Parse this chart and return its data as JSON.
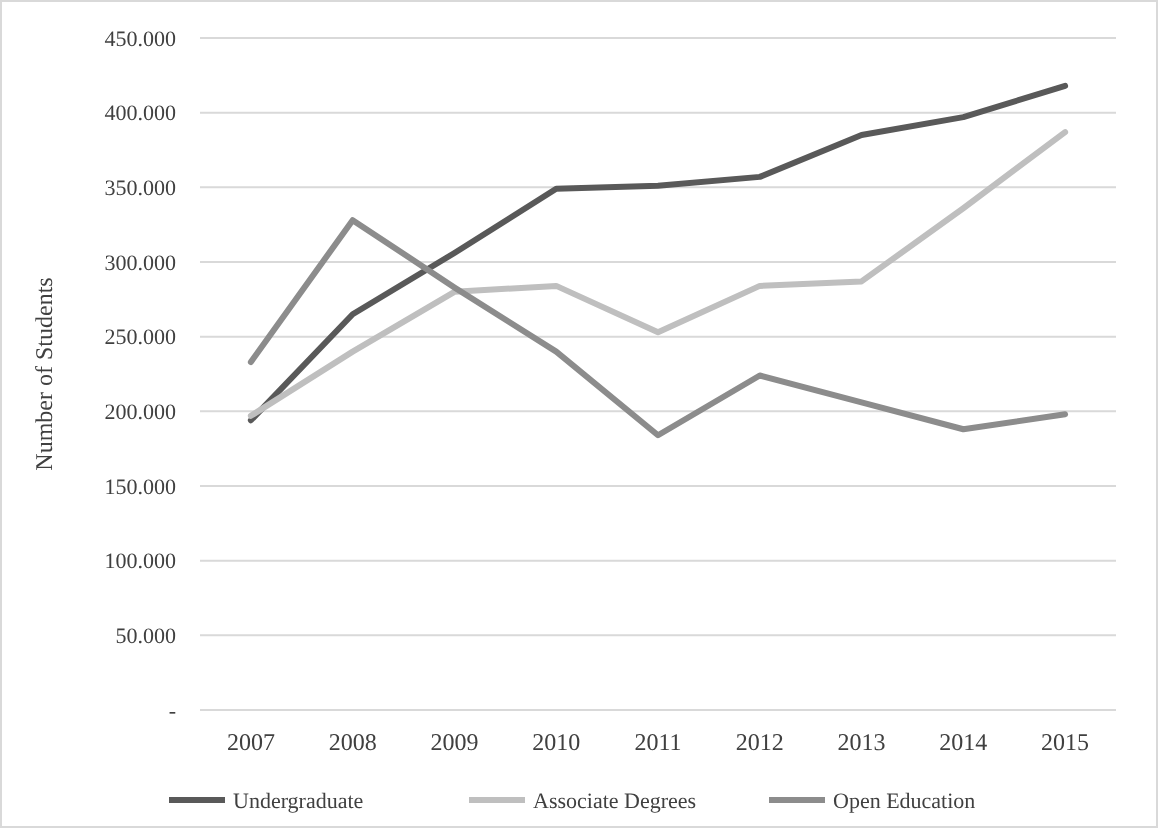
{
  "chart_data": {
    "type": "line",
    "ylabel": "Number of Students",
    "categories": [
      "2007",
      "2008",
      "2009",
      "2010",
      "2011",
      "2012",
      "2013",
      "2014",
      "2015"
    ],
    "series": [
      {
        "name": "Undergraduate",
        "color": "#595959",
        "values": [
          194000,
          265000,
          306000,
          349000,
          351000,
          357000,
          385000,
          397000,
          418000
        ]
      },
      {
        "name": "Associate Degrees",
        "color": "#bfbfbf",
        "values": [
          197000,
          240000,
          280000,
          284000,
          253000,
          284000,
          287000,
          336000,
          387000
        ]
      },
      {
        "name": "Open Education",
        "color": "#8c8c8c",
        "values": [
          233000,
          328000,
          283000,
          240000,
          184000,
          224000,
          206000,
          188000,
          198000
        ]
      }
    ],
    "ylim": [
      0,
      450000
    ],
    "yticks": [
      {
        "value": 0,
        "label": "-"
      },
      {
        "value": 50000,
        "label": "50.000"
      },
      {
        "value": 100000,
        "label": "100.000"
      },
      {
        "value": 150000,
        "label": "150.000"
      },
      {
        "value": 200000,
        "label": "200.000"
      },
      {
        "value": 250000,
        "label": "250.000"
      },
      {
        "value": 300000,
        "label": "300.000"
      },
      {
        "value": 350000,
        "label": "350.000"
      },
      {
        "value": 400000,
        "label": "400.000"
      },
      {
        "value": 450000,
        "label": "450.000"
      }
    ],
    "grid": "y",
    "legend": "bottom",
    "marker": "none",
    "line_style": "solid"
  }
}
